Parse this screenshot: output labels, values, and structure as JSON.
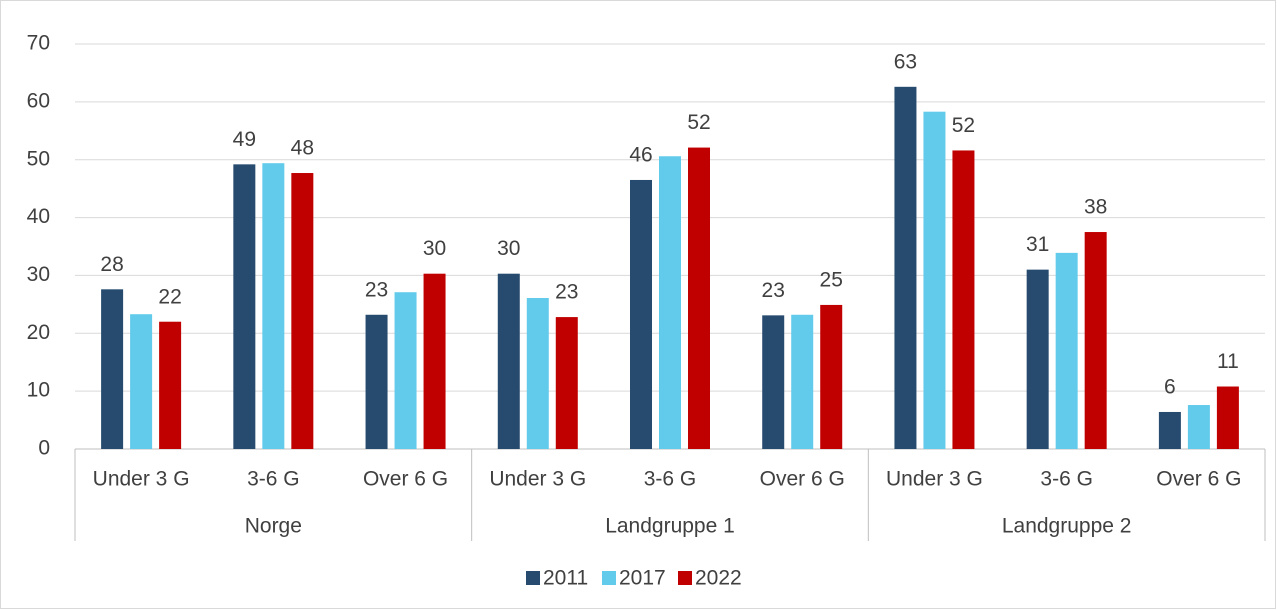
{
  "chart_data": {
    "type": "bar",
    "categories": [
      "Under 3 G",
      "3-6 G",
      "Over 6 G",
      "Under 3 G",
      "3-6 G",
      "Over 6 G",
      "Under 3 G",
      "3-6 G",
      "Over 6 G"
    ],
    "groups": [
      "Norge",
      "Landgruppe 1",
      "Landgruppe 2"
    ],
    "series": [
      {
        "name": "2011",
        "color": "#264b6e",
        "values": [
          27.6,
          49.2,
          23.2,
          30.3,
          46.5,
          23.1,
          62.6,
          31.0,
          6.4
        ],
        "value_labels": [
          "28",
          "49",
          "23",
          "30",
          "46",
          "23",
          "63",
          "31",
          "6"
        ]
      },
      {
        "name": "2017",
        "color": "#62cbeb",
        "values": [
          23.3,
          49.4,
          27.1,
          26.1,
          50.6,
          23.2,
          58.3,
          33.9,
          7.6
        ]
      },
      {
        "name": "2022",
        "color": "#c00000",
        "values": [
          22.0,
          47.7,
          30.3,
          22.8,
          52.1,
          24.9,
          51.6,
          37.5,
          10.8
        ],
        "value_labels": [
          "22",
          "48",
          "30",
          "23",
          "52",
          "25",
          "52",
          "38",
          "11"
        ]
      }
    ],
    "ylim": [
      0,
      70
    ],
    "yticks": [
      0,
      10,
      20,
      30,
      40,
      50,
      60,
      70
    ],
    "grid": true,
    "legend": "bottom"
  }
}
